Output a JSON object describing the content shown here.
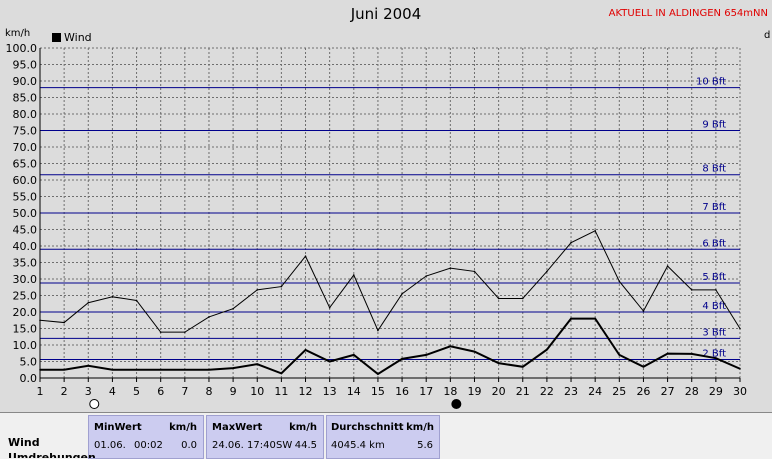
{
  "header": {
    "title": "Juni 2004",
    "station": "AKTUELL IN ALDINGEN 654mNN",
    "unit_left": "km/h",
    "unit_right": "d"
  },
  "chart_data": {
    "type": "line",
    "legend": "Wind",
    "x": [
      1,
      2,
      3,
      4,
      5,
      6,
      7,
      8,
      9,
      10,
      11,
      12,
      13,
      14,
      15,
      16,
      17,
      18,
      19,
      20,
      21,
      22,
      23,
      24,
      25,
      26,
      27,
      28,
      29,
      30
    ],
    "ylim": [
      0,
      100
    ],
    "yticks": [
      "0.0",
      "5.0",
      "10.0",
      "15.0",
      "20.0",
      "25.0",
      "30.0",
      "35.0",
      "40.0",
      "45.0",
      "50.0",
      "55.0",
      "60.0",
      "65.0",
      "70.0",
      "75.0",
      "80.0",
      "85.0",
      "90.0",
      "95.0",
      "100.0"
    ],
    "xticks": [
      "1",
      "2",
      "3",
      "4",
      "5",
      "6",
      "7",
      "8",
      "9",
      "10",
      "11",
      "12",
      "13",
      "14",
      "15",
      "16",
      "17",
      "18",
      "19",
      "20",
      "21",
      "22",
      "23",
      "24",
      "25",
      "26",
      "27",
      "28",
      "29",
      "30"
    ],
    "grid": true,
    "series": [
      {
        "name": "Wind",
        "values": [
          2.5,
          2.5,
          3.7,
          2.5,
          2.5,
          2.5,
          2.5,
          2.5,
          3.0,
          4.2,
          1.4,
          8.5,
          5.0,
          7.0,
          1.2,
          5.8,
          7.0,
          9.6,
          8.0,
          4.5,
          3.4,
          8.6,
          18.0,
          18.0,
          7.0,
          3.4,
          7.4,
          7.3,
          6.0,
          2.8
        ]
      },
      {
        "name": "Max",
        "values": [
          17.5,
          16.8,
          22.8,
          24.6,
          23.5,
          13.9,
          13.9,
          18.5,
          21.0,
          26.7,
          27.7,
          36.9,
          21.3,
          31.2,
          14.4,
          25.5,
          30.9,
          33.3,
          32.3,
          24.1,
          24.1,
          32.3,
          41.0,
          44.6,
          29.3,
          20.3,
          33.9,
          26.7,
          26.7,
          15.0
        ]
      }
    ],
    "beaufort": [
      {
        "label": "2 Bft",
        "value": 5.6
      },
      {
        "label": "3 Bft",
        "value": 12.0
      },
      {
        "label": "4 Bft",
        "value": 20.0
      },
      {
        "label": "5 Bft",
        "value": 28.8
      },
      {
        "label": "6 Bft",
        "value": 39.0
      },
      {
        "label": "7 Bft",
        "value": 50.0
      },
      {
        "label": "8 Bft",
        "value": 61.6
      },
      {
        "label": "9 Bft",
        "value": 75.0
      },
      {
        "label": "10 Bft",
        "value": 88.0
      }
    ],
    "moon_markers": [
      {
        "day": 3,
        "phase": "full"
      },
      {
        "day": 18,
        "phase": "new"
      }
    ],
    "colors": {
      "series": "#000000",
      "beaufort": "#00008b",
      "grid": "#6e6e6e",
      "plot_bg": "#dcdcdc"
    }
  },
  "stats": {
    "row_label": "Wind",
    "row_label_2": "Umdrehungen",
    "min": {
      "header": "MinWert",
      "unit": "km/h",
      "date": "01.06.",
      "time": "00:02",
      "value": "0.0"
    },
    "max": {
      "header": "MaxWert",
      "unit": "km/h",
      "datetime": "24.06. 17:40",
      "dir": "SW",
      "value": "44.5"
    },
    "avg": {
      "header": "Durchschnitt",
      "unit": "km/h",
      "distance": "4045.4 km",
      "value": "5.6"
    }
  }
}
